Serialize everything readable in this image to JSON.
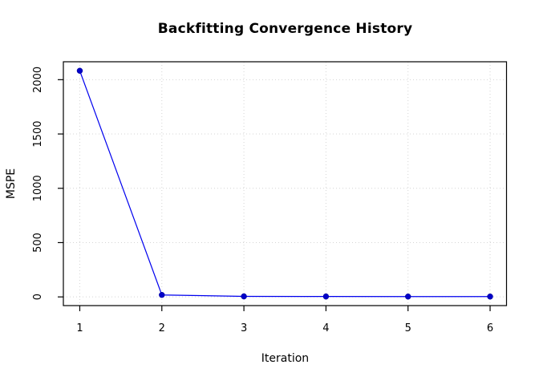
{
  "chart_data": {
    "type": "line",
    "title": "Backfitting Convergence History",
    "xlabel": "Iteration",
    "ylabel": "MSPE",
    "series": [
      {
        "name": "MSPE",
        "x": [
          1,
          2,
          3,
          4,
          5,
          6
        ],
        "values": [
          2082,
          18,
          5,
          4,
          3,
          3
        ]
      }
    ],
    "xticks": [
      1,
      2,
      3,
      4,
      5,
      6
    ],
    "yticks": [
      0,
      500,
      1000,
      1500,
      2000
    ],
    "xlim": [
      0.8,
      6.2
    ],
    "ylim": [
      -80,
      2165
    ],
    "grid": "dotted",
    "legend": "none",
    "colors": {
      "line": "#0000ee",
      "point_fill": "#0000cc",
      "point_stroke": "#0000aa",
      "grid": "#d4d4d4",
      "axis": "#000000",
      "background": "#ffffff"
    },
    "marker": "filled-circle"
  }
}
